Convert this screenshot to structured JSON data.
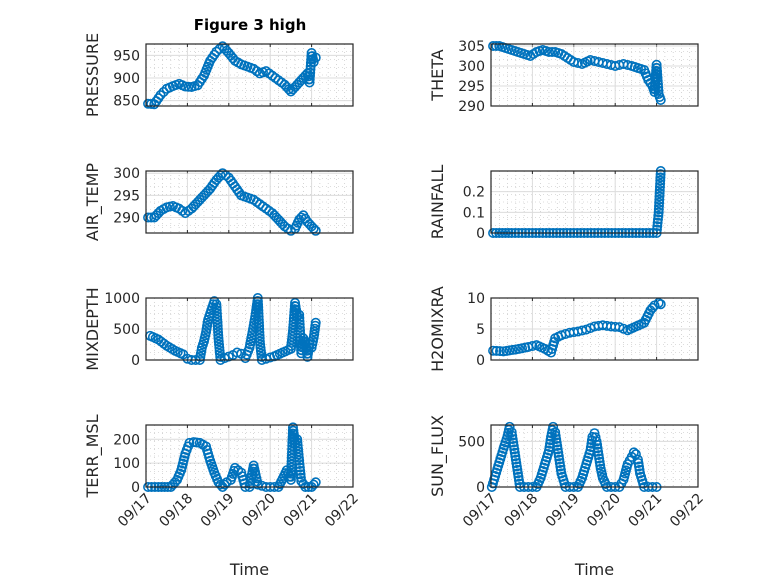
{
  "chart_data": [
    {
      "type": "scatter",
      "title": "Figure 3 high",
      "ylabel": "PRESSURE",
      "xlabel": "",
      "xlim": [
        0,
        5
      ],
      "ylim": [
        838,
        975
      ],
      "yticks": [
        850,
        900,
        950
      ],
      "ytick_labels": [
        "850",
        "900",
        "950"
      ],
      "x": [
        0.05,
        0.2,
        0.35,
        0.5,
        0.65,
        0.8,
        0.95,
        1.1,
        1.25,
        1.4,
        1.55,
        1.7,
        1.85,
        2.0,
        2.15,
        2.3,
        2.45,
        2.6,
        2.75,
        2.9,
        3.05,
        3.2,
        3.35,
        3.5,
        3.6,
        3.7,
        3.8,
        3.9,
        3.95,
        4.0,
        4.05,
        4.1
      ],
      "y": [
        843,
        842,
        862,
        876,
        882,
        887,
        881,
        880,
        884,
        905,
        938,
        958,
        970,
        955,
        938,
        930,
        925,
        920,
        910,
        915,
        905,
        895,
        885,
        870,
        880,
        890,
        900,
        910,
        890,
        955,
        935,
        945
      ]
    },
    {
      "type": "scatter",
      "title": "",
      "ylabel": "THETA",
      "xlabel": "",
      "xlim": [
        0,
        5
      ],
      "ylim": [
        290,
        305.5
      ],
      "yticks": [
        290,
        295,
        300,
        305
      ],
      "ytick_labels": [
        "290",
        "295",
        "300",
        "305"
      ],
      "x": [
        0.05,
        0.2,
        0.35,
        0.5,
        0.65,
        0.8,
        0.95,
        1.1,
        1.25,
        1.4,
        1.55,
        1.7,
        1.85,
        2.0,
        2.2,
        2.4,
        2.6,
        2.8,
        3.0,
        3.2,
        3.4,
        3.55,
        3.7,
        3.8,
        3.9,
        3.95,
        4.0,
        4.05,
        4.1
      ],
      "y": [
        305,
        305,
        304.5,
        304,
        303.5,
        303,
        302.5,
        303.5,
        304,
        303.5,
        303.5,
        303,
        302,
        301,
        300.5,
        301.5,
        301,
        300.5,
        300,
        300.5,
        300,
        299.5,
        299,
        296.5,
        295,
        293.5,
        300.3,
        293,
        291.5
      ]
    },
    {
      "type": "scatter",
      "title": "",
      "ylabel": "AIR_TEMP",
      "xlabel": "",
      "xlim": [
        0,
        5
      ],
      "ylim": [
        286.5,
        300.5
      ],
      "yticks": [
        290,
        295,
        300
      ],
      "ytick_labels": [
        "290",
        "295",
        "300"
      ],
      "x": [
        0.05,
        0.2,
        0.35,
        0.5,
        0.65,
        0.8,
        0.95,
        1.1,
        1.25,
        1.4,
        1.55,
        1.7,
        1.85,
        2.0,
        2.15,
        2.3,
        2.45,
        2.6,
        2.75,
        2.9,
        3.05,
        3.2,
        3.35,
        3.5,
        3.6,
        3.7,
        3.8,
        3.9,
        4.0,
        4.1
      ],
      "y": [
        290,
        290,
        291.5,
        292.3,
        292.6,
        292,
        291,
        292,
        293.5,
        295,
        296.5,
        298.5,
        300,
        299,
        297,
        295,
        294.5,
        294,
        293,
        292,
        291,
        289.5,
        288,
        287,
        287.5,
        289.5,
        290.5,
        289,
        288,
        287
      ]
    },
    {
      "type": "scatter",
      "title": "",
      "ylabel": "RAINFALL",
      "xlabel": "",
      "xlim": [
        0,
        5
      ],
      "ylim": [
        0,
        0.3
      ],
      "yticks": [
        0,
        0.1,
        0.2
      ],
      "ytick_labels": [
        "0",
        "0.1",
        "0.2"
      ],
      "x": [
        0.05,
        0.5,
        1.0,
        1.5,
        2.0,
        2.5,
        3.0,
        3.5,
        4.0,
        4.05,
        4.1
      ],
      "y": [
        0,
        0,
        0,
        0,
        0,
        0,
        0,
        0,
        0,
        0.1,
        0.3
      ]
    },
    {
      "type": "scatter",
      "title": "",
      "ylabel": "MIXDEPTH",
      "xlabel": "",
      "xlim": [
        0,
        5
      ],
      "ylim": [
        0,
        1000
      ],
      "yticks": [
        0,
        500,
        1000
      ],
      "ytick_labels": [
        "0",
        "500",
        "1000"
      ],
      "x": [
        0.1,
        0.3,
        0.5,
        0.7,
        0.9,
        1.0,
        1.1,
        1.2,
        1.3,
        1.35,
        1.4,
        1.45,
        1.5,
        1.55,
        1.6,
        1.65,
        1.7,
        1.75,
        1.8,
        1.9,
        2.1,
        2.2,
        2.3,
        2.4,
        2.5,
        2.6,
        2.65,
        2.7,
        2.75,
        2.8,
        2.9,
        3.1,
        3.3,
        3.5,
        3.55,
        3.6,
        3.65,
        3.7,
        3.75,
        3.8,
        3.85,
        3.9,
        3.95,
        4.0,
        4.05,
        4.1
      ],
      "y": [
        390,
        330,
        230,
        150,
        90,
        20,
        0,
        0,
        0,
        200,
        300,
        450,
        650,
        750,
        850,
        950,
        900,
        350,
        0,
        30,
        80,
        120,
        100,
        30,
        200,
        550,
        750,
        1000,
        300,
        0,
        20,
        60,
        120,
        180,
        470,
        920,
        700,
        730,
        110,
        350,
        300,
        50,
        260,
        200,
        360,
        600
      ]
    },
    {
      "type": "scatter",
      "title": "",
      "ylabel": "H2OMIXRA",
      "xlabel": "",
      "xlim": [
        0,
        5
      ],
      "ylim": [
        0,
        10
      ],
      "yticks": [
        0,
        5,
        10
      ],
      "ytick_labels": [
        "0",
        "5",
        "10"
      ],
      "x": [
        0.05,
        0.3,
        0.6,
        0.9,
        1.1,
        1.3,
        1.45,
        1.55,
        1.7,
        1.9,
        2.1,
        2.3,
        2.5,
        2.7,
        2.9,
        3.1,
        3.3,
        3.5,
        3.7,
        3.85,
        3.95,
        4.05,
        4.1
      ],
      "y": [
        1.5,
        1.4,
        1.7,
        2.1,
        2.4,
        1.8,
        1.2,
        3.5,
        4.0,
        4.4,
        4.6,
        4.9,
        5.4,
        5.6,
        5.4,
        5.3,
        4.8,
        5.4,
        6.0,
        8.0,
        8.8,
        9.2,
        9.0
      ]
    },
    {
      "type": "scatter",
      "title": "",
      "ylabel": "TERR_MSL",
      "xlabel": "Time",
      "xlim": [
        0,
        5
      ],
      "ylim": [
        0,
        260
      ],
      "yticks": [
        0,
        100,
        200
      ],
      "ytick_labels": [
        "0",
        "100",
        "200"
      ],
      "xticks": [
        0,
        1,
        2,
        3,
        4,
        5
      ],
      "xtick_labels": [
        "09/17",
        "09/18",
        "09/19",
        "09/20",
        "09/21",
        "09/22"
      ],
      "x": [
        0.05,
        0.3,
        0.6,
        0.75,
        0.85,
        0.95,
        1.05,
        1.15,
        1.3,
        1.45,
        1.55,
        1.65,
        1.75,
        1.85,
        1.95,
        2.05,
        2.15,
        2.3,
        2.4,
        2.5,
        2.6,
        2.7,
        2.9,
        3.0,
        3.2,
        3.4,
        3.5,
        3.55,
        3.6,
        3.65,
        3.7,
        3.75,
        3.85,
        4.0,
        4.1
      ],
      "y": [
        0,
        0,
        0,
        30,
        70,
        140,
        185,
        188,
        185,
        170,
        110,
        60,
        20,
        0,
        20,
        30,
        80,
        60,
        0,
        0,
        90,
        10,
        0,
        0,
        0,
        70,
        30,
        250,
        180,
        200,
        110,
        25,
        0,
        0,
        20
      ]
    },
    {
      "type": "scatter",
      "title": "",
      "ylabel": "SUN_FLUX",
      "xlabel": "Time",
      "xlim": [
        0,
        5
      ],
      "ylim": [
        0,
        680
      ],
      "yticks": [
        0,
        500
      ],
      "ytick_labels": [
        "0",
        "500"
      ],
      "xticks": [
        0,
        1,
        2,
        3,
        4,
        5
      ],
      "xtick_labels": [
        "09/17",
        "09/18",
        "09/19",
        "09/20",
        "09/21",
        "09/22"
      ],
      "x": [
        0.02,
        0.1,
        0.2,
        0.3,
        0.4,
        0.45,
        0.5,
        0.55,
        0.6,
        0.65,
        0.7,
        0.8,
        0.9,
        1.0,
        1.1,
        1.2,
        1.3,
        1.4,
        1.45,
        1.5,
        1.55,
        1.6,
        1.65,
        1.7,
        1.8,
        1.9,
        2.0,
        2.1,
        2.2,
        2.3,
        2.4,
        2.45,
        2.5,
        2.55,
        2.6,
        2.65,
        2.7,
        2.8,
        2.9,
        3.0,
        3.1,
        3.2,
        3.3,
        3.4,
        3.45,
        3.5,
        3.55,
        3.6,
        3.7,
        3.8,
        3.9,
        4.0
      ],
      "y": [
        0,
        120,
        270,
        420,
        560,
        660,
        600,
        450,
        300,
        150,
        0,
        0,
        0,
        0,
        0,
        100,
        250,
        400,
        550,
        660,
        600,
        450,
        300,
        150,
        0,
        0,
        0,
        0,
        100,
        250,
        400,
        550,
        590,
        500,
        350,
        200,
        100,
        0,
        0,
        0,
        0,
        80,
        250,
        330,
        380,
        360,
        300,
        150,
        0,
        0,
        0,
        0
      ]
    }
  ],
  "figure": {
    "title": "Figure 3 high",
    "marker_color": "#0072BD"
  }
}
